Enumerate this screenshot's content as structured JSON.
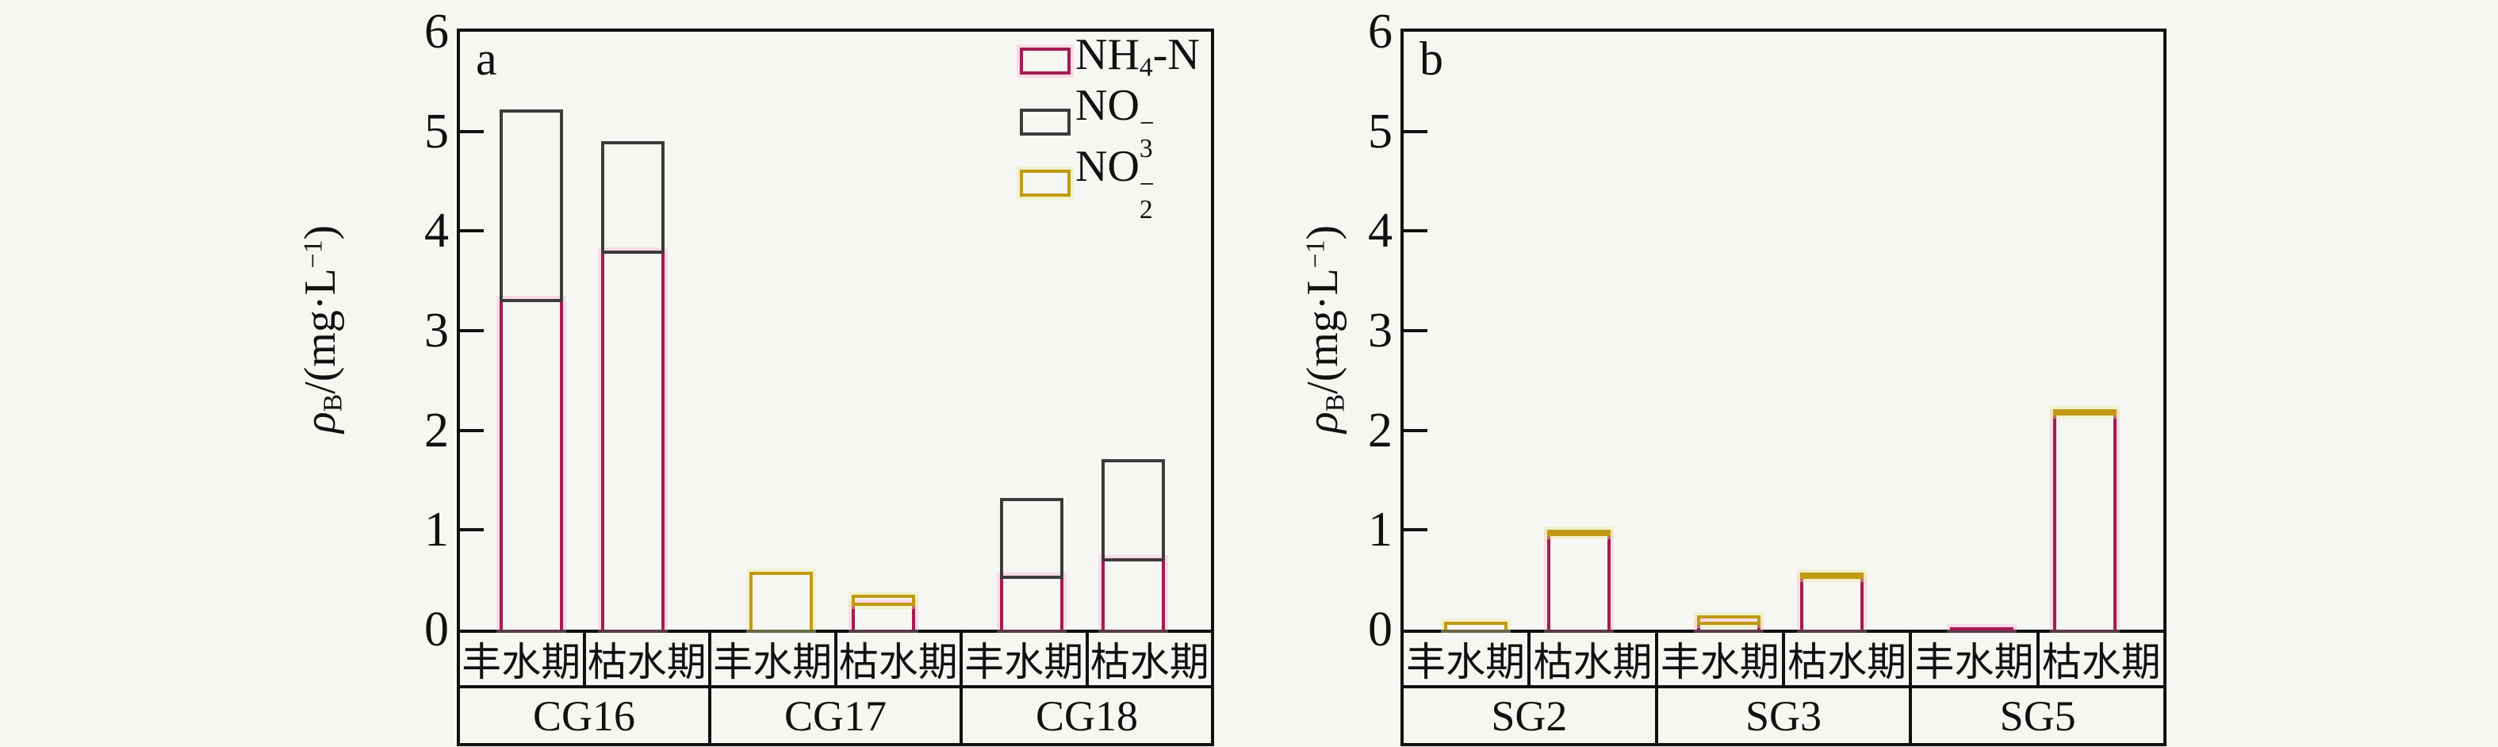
{
  "background": "#f6f6f3",
  "colors": {
    "nh4": "#a41c50",
    "no3": "#3c3c3c",
    "no2": "#c09a14",
    "axis": "#111111"
  },
  "ylabel_parts": [
    {
      "t": "ρ",
      "s": "i"
    },
    {
      "t": "B",
      "s": "sub"
    },
    {
      "t": "/(mg·L"
    },
    {
      "t": "−1",
      "s": "sup"
    },
    {
      "t": ")"
    }
  ],
  "legend": {
    "items": [
      {
        "key": "nh4",
        "name": "NH4-N",
        "parts": [
          {
            "t": "NH"
          },
          {
            "t": "4",
            "s": "sub"
          },
          {
            "t": "-N"
          }
        ]
      },
      {
        "key": "no3",
        "name": "NO3-",
        "parts": [
          {
            "t": "NO"
          },
          {
            "s": "stack",
            "sup": "−",
            "sub": "3"
          }
        ]
      },
      {
        "key": "no2",
        "name": "NO2-",
        "parts": [
          {
            "t": "NO"
          },
          {
            "s": "stack",
            "sup": "−",
            "sub": "2"
          }
        ]
      }
    ]
  },
  "chart_data": [
    {
      "panel_letter": "a",
      "type": "bar",
      "stacked": true,
      "ylabel": "ρB/(mg·L−1)",
      "ylim": [
        0,
        6
      ],
      "yticks": [
        0,
        1,
        2,
        3,
        4,
        5,
        6
      ],
      "grid": false,
      "legend_position": "top-right-inside",
      "groups": [
        "CG16",
        "CG17",
        "CG18"
      ],
      "seasons": [
        "丰水期",
        "枯水期"
      ],
      "categories": [
        "CG16 丰水期",
        "CG16 枯水期",
        "CG17 丰水期",
        "CG17 枯水期",
        "CG18 丰水期",
        "CG18 枯水期"
      ],
      "series": [
        {
          "name": "NH4-N",
          "key": "nh4",
          "values": [
            3.32,
            3.8,
            0,
            0.27,
            0.54,
            0.72
          ]
        },
        {
          "name": "NO3-",
          "key": "no3",
          "values": [
            1.9,
            1.1,
            0,
            0,
            0.78,
            0.99
          ]
        },
        {
          "name": "NO2-",
          "key": "no2",
          "values": [
            0,
            0,
            0.58,
            0.08,
            0,
            0
          ]
        }
      ],
      "totals": [
        5.22,
        4.9,
        0.58,
        0.35,
        1.32,
        1.71
      ]
    },
    {
      "panel_letter": "b",
      "type": "bar",
      "stacked": true,
      "ylabel": "ρB/(mg·L−1)",
      "ylim": [
        0,
        6
      ],
      "yticks": [
        0,
        1,
        2,
        3,
        4,
        5,
        6
      ],
      "grid": false,
      "legend_position": "none",
      "groups": [
        "SG2",
        "SG3",
        "SG5"
      ],
      "seasons": [
        "丰水期",
        "枯水期"
      ],
      "categories": [
        "SG2 丰水期",
        "SG2 枯水期",
        "SG3 丰水期",
        "SG3 枯水期",
        "SG5 丰水期",
        "SG5 枯水期"
      ],
      "series": [
        {
          "name": "NH4-N",
          "key": "nh4",
          "values": [
            0,
            0.97,
            0.08,
            0.54,
            0.02,
            2.18
          ]
        },
        {
          "name": "NO3-",
          "key": "no3",
          "values": [
            0,
            0,
            0,
            0,
            0,
            0
          ]
        },
        {
          "name": "NO2-",
          "key": "no2",
          "values": [
            0.08,
            0.03,
            0.06,
            0.03,
            0,
            0.03
          ]
        }
      ],
      "totals": [
        0.08,
        1.0,
        0.14,
        0.57,
        0.02,
        2.21
      ]
    }
  ]
}
